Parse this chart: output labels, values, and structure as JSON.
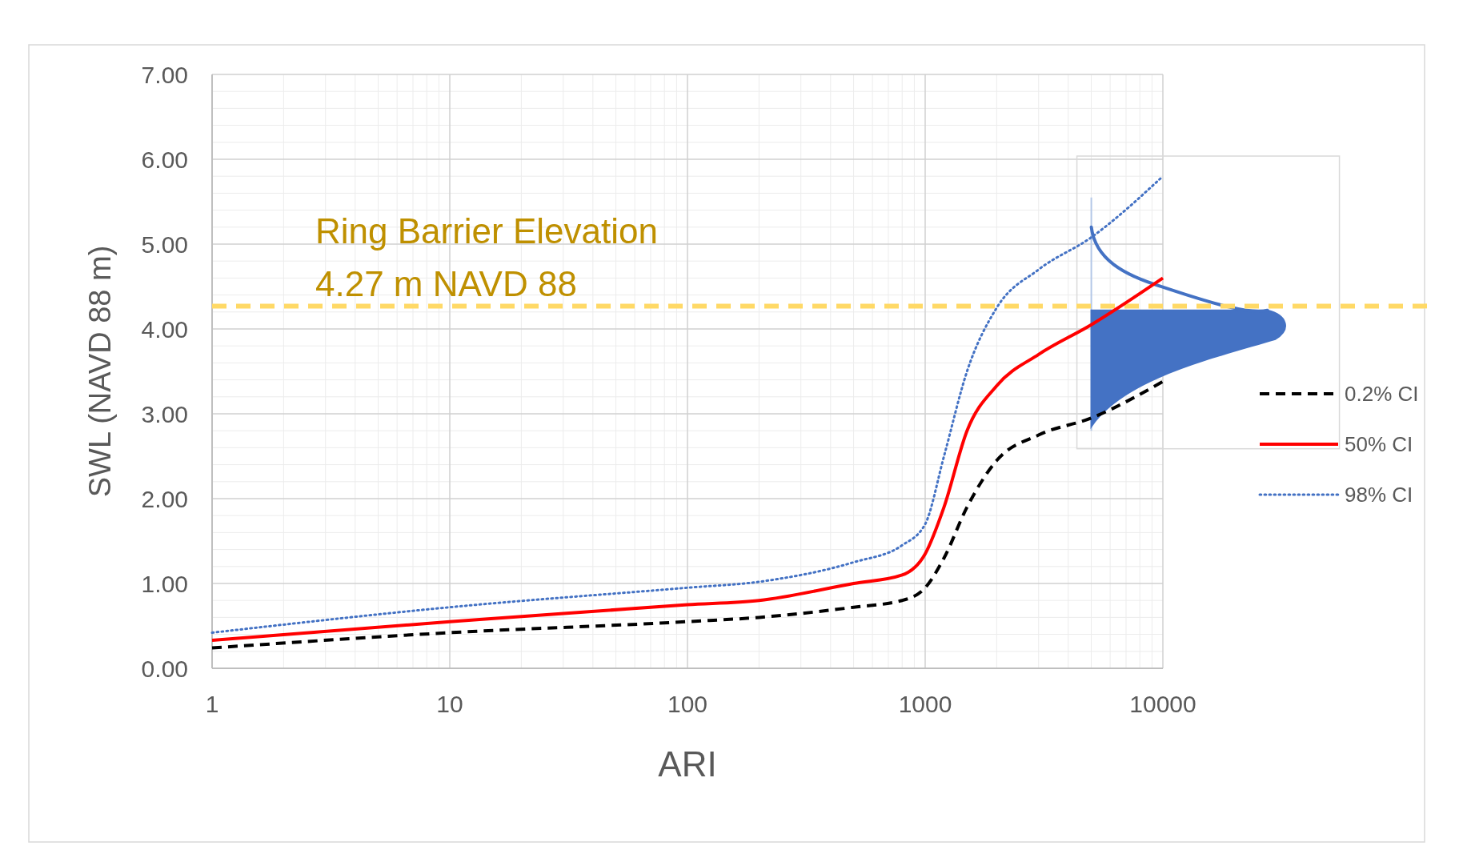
{
  "chart_data": {
    "type": "line",
    "xlabel": "ARI",
    "ylabel": "SWL (NAVD 88 m)",
    "log": "x",
    "xlim": [
      1,
      10000
    ],
    "xticks": [
      1,
      10,
      100,
      1000,
      10000
    ],
    "ylim": [
      0,
      7
    ],
    "yticks": [
      {
        "value": 0,
        "label": "0.00"
      },
      {
        "value": 1,
        "label": "1.00"
      },
      {
        "value": 2,
        "label": "2.00"
      },
      {
        "value": 3,
        "label": "3.00"
      },
      {
        "value": 4,
        "label": "4.00"
      },
      {
        "value": 5,
        "label": "5.00"
      },
      {
        "value": 6,
        "label": "6.00"
      },
      {
        "value": 7,
        "label": "7.00"
      }
    ],
    "grid": true,
    "legend": "right",
    "marker": "none",
    "x": [
      1,
      10,
      100,
      200,
      500,
      800,
      1000,
      1200,
      1500,
      2000,
      3000,
      5000,
      10000
    ],
    "series": [
      {
        "name": "0.2% CI",
        "color": "#000000",
        "line_style": "dashed",
        "values": [
          0.24,
          0.42,
          0.55,
          0.6,
          0.72,
          0.8,
          0.95,
          1.3,
          1.9,
          2.45,
          2.75,
          2.95,
          3.38
        ]
      },
      {
        "name": "50% CI",
        "color": "#ff0000",
        "line_style": "solid",
        "values": [
          0.33,
          0.55,
          0.75,
          0.8,
          1.0,
          1.1,
          1.35,
          1.9,
          2.8,
          3.33,
          3.7,
          4.05,
          4.6
        ]
      },
      {
        "name": "98% CI",
        "color": "#4472c4",
        "line_style": "dotted",
        "values": [
          0.42,
          0.72,
          0.95,
          1.02,
          1.25,
          1.45,
          1.7,
          2.5,
          3.5,
          4.25,
          4.7,
          5.08,
          5.8
        ]
      }
    ],
    "ref_lines": [
      {
        "axis": "y",
        "value": 4.27,
        "label": "Ring Barrier Elevation\n4.27 m NAVD 88",
        "color": "#ffd966",
        "line_style": "dashed"
      }
    ]
  }
}
